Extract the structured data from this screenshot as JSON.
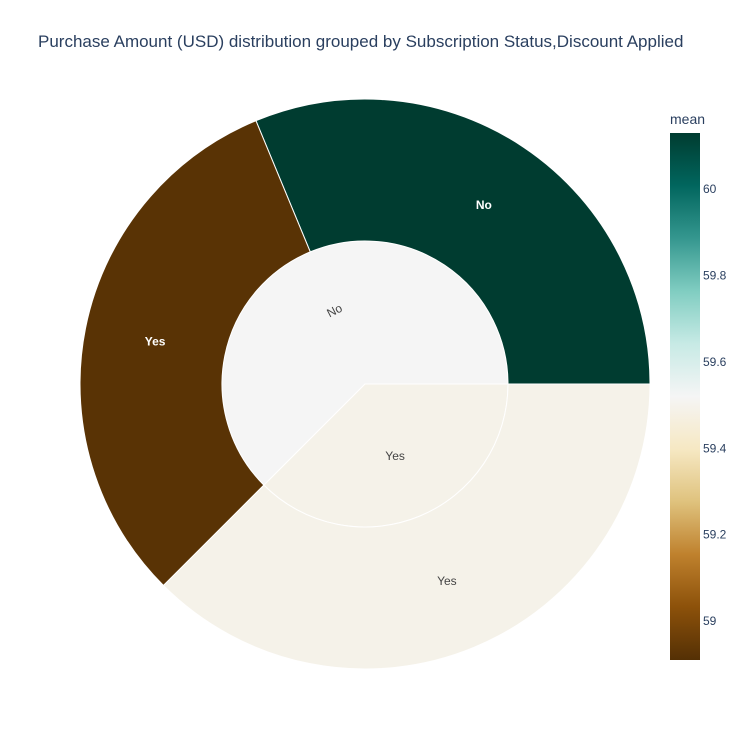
{
  "chart_data": {
    "type": "sunburst",
    "title": "Purchase Amount (USD) distribution grouped by Subscription Status,Discount Applied",
    "levels": [
      "Subscription Status",
      "Discount Applied"
    ],
    "color_metric": "mean",
    "nodes": [
      {
        "id": "No",
        "label": "No",
        "parent": "",
        "share": 0.625,
        "mean": 59.52
      },
      {
        "id": "Yes",
        "label": "Yes",
        "parent": "",
        "share": 0.375,
        "mean": 59.49
      },
      {
        "id": "No/No",
        "label": "No",
        "parent": "No",
        "share": 0.3125,
        "mean": 60.13
      },
      {
        "id": "No/Yes",
        "label": "Yes",
        "parent": "No",
        "share": 0.3125,
        "mean": 58.92
      },
      {
        "id": "Yes/Yes",
        "label": "Yes",
        "parent": "Yes",
        "share": 0.375,
        "mean": 59.49
      }
    ],
    "colorbar": {
      "title": "mean",
      "range": [
        58.91,
        60.13
      ],
      "ticks": [
        59,
        59.2,
        59.4,
        59.6,
        59.8,
        60
      ],
      "tick_labels": [
        "59",
        "59.2",
        "59.4",
        "59.6",
        "59.8",
        "60"
      ],
      "colorscale": [
        [
          0.0,
          "#543005"
        ],
        [
          0.1,
          "#8c510a"
        ],
        [
          0.2,
          "#bf812d"
        ],
        [
          0.3,
          "#dfc27d"
        ],
        [
          0.4,
          "#f6e8c3"
        ],
        [
          0.5,
          "#f5f5f5"
        ],
        [
          0.6,
          "#c7eae5"
        ],
        [
          0.7,
          "#80cdc1"
        ],
        [
          0.8,
          "#35978f"
        ],
        [
          0.9,
          "#01665e"
        ],
        [
          1.0,
          "#003c30"
        ]
      ]
    }
  }
}
